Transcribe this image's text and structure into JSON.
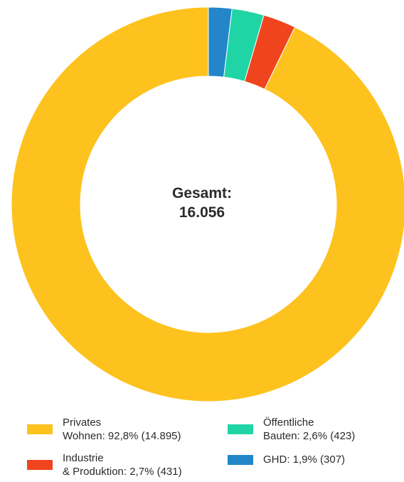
{
  "chart_data": {
    "type": "pie",
    "style": "donut",
    "center_label": {
      "line1": "Gesamt:",
      "line2": "16.056"
    },
    "slices": [
      {
        "name_line1": "Privates",
        "name_line2": "Wohnen: 92,8% (14.895)",
        "value": 14895,
        "percent": 92.8,
        "color": "#FDC21E"
      },
      {
        "name_line1": "Industrie",
        "name_line2": "& Produktion: 2,7% (431)",
        "value": 431,
        "percent": 2.7,
        "color": "#F0441F"
      },
      {
        "name_line1": "Öffentliche",
        "name_line2": "Bauten: 2,6% (423)",
        "value": 423,
        "percent": 2.6,
        "color": "#20D5A5"
      },
      {
        "name_line1": "GHD: 1,9% (307)",
        "name_line2": "",
        "value": 307,
        "percent": 1.9,
        "color": "#2286C8"
      }
    ],
    "legend_placement": "bottom",
    "slice_order": "counterclockwise-from-top"
  }
}
